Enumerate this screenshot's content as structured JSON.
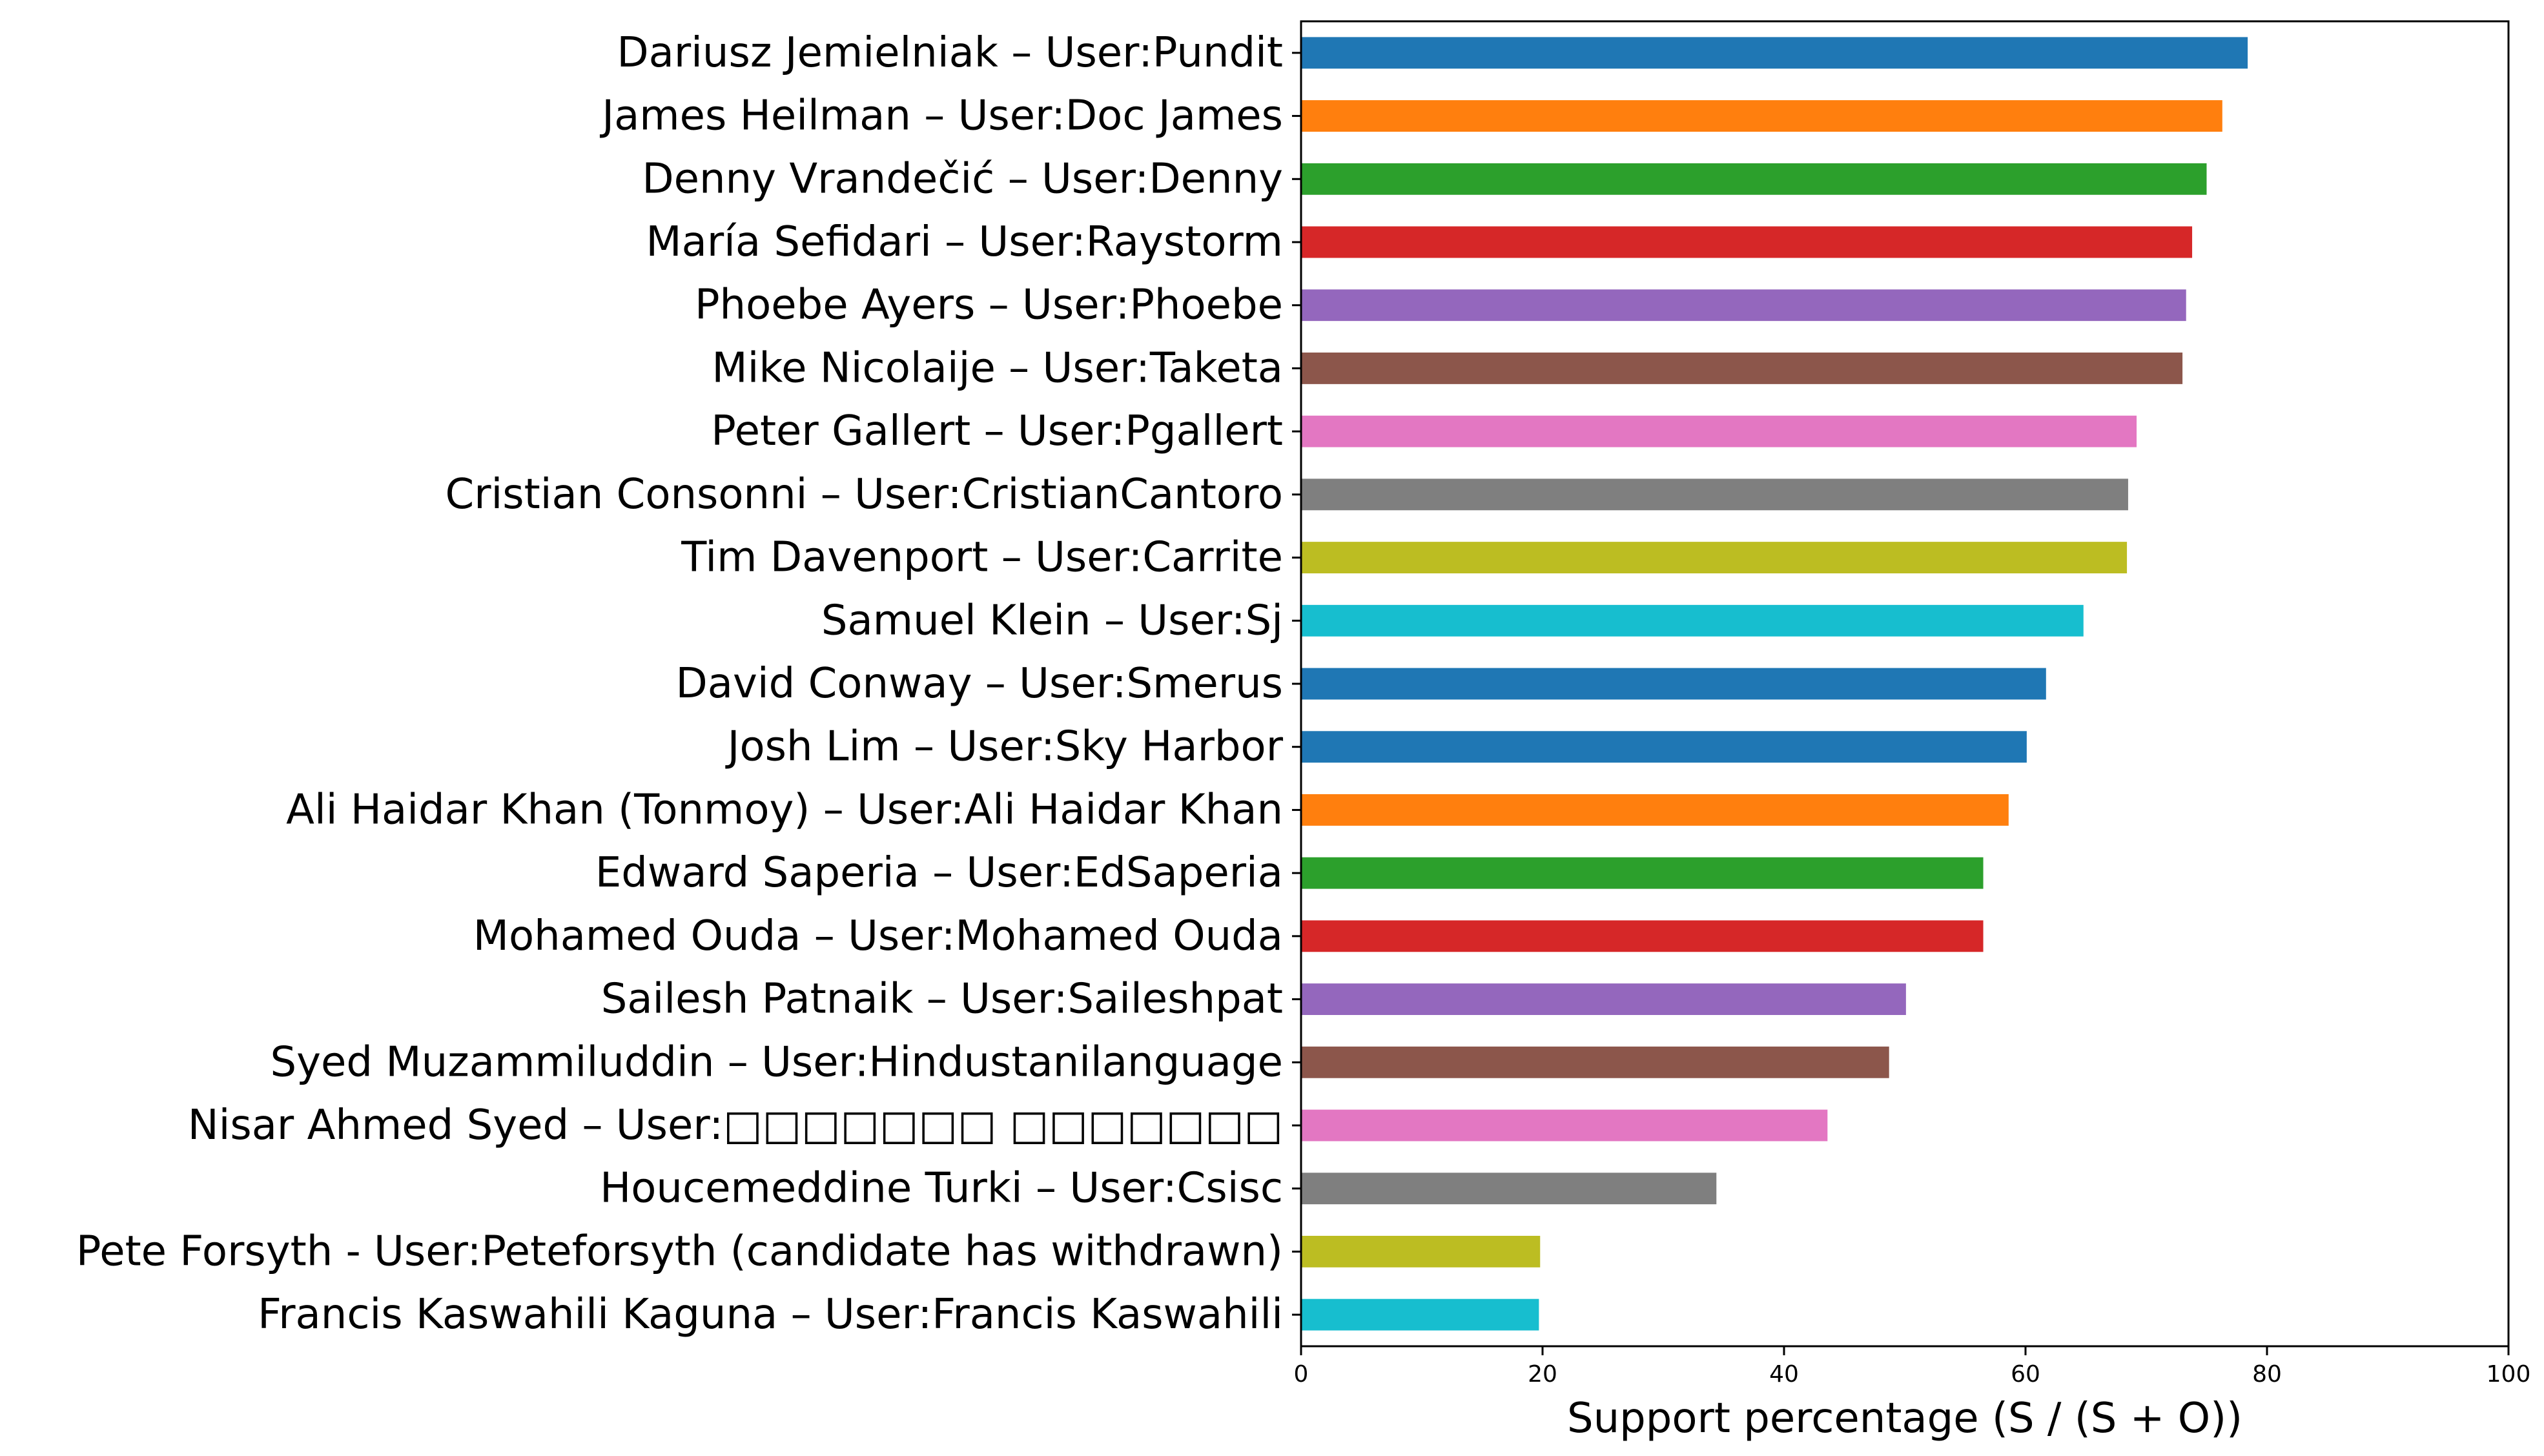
{
  "chart_data": {
    "type": "bar",
    "orientation": "horizontal",
    "title": "",
    "xlabel": "Support percentage (S / (S + O))",
    "ylabel": "",
    "xlim": [
      0,
      100
    ],
    "xticks": [
      0,
      20,
      40,
      60,
      80,
      100
    ],
    "grid": false,
    "legend": "none",
    "categories": [
      "Dariusz Jemielniak – User:Pundit",
      "James Heilman – User:Doc James",
      "Denny Vrandečić – User:Denny",
      "María Sefidari – User:Raystorm",
      "Phoebe Ayers – User:Phoebe",
      "Mike Nicolaije – User:Taketa",
      "Peter Gallert – User:Pgallert",
      "Cristian Consonni – User:CristianCantoro",
      "Tim Davenport – User:Carrite",
      "Samuel Klein – User:Sj",
      "David Conway – User:Smerus",
      "Josh Lim – User:Sky Harbor",
      "Ali Haidar Khan (Tonmoy) – User:Ali Haidar Khan",
      "Edward Saperia – User:EdSaperia",
      "Mohamed Ouda – User:Mohamed Ouda",
      "Sailesh Patnaik – User:Saileshpat",
      "Syed Muzammiluddin – User:Hindustanilanguage",
      "Nisar Ahmed Syed – User:□□□□□□□ □□□□□□□",
      "Houcemeddine Turki – User:Csisc",
      "Pete Forsyth - User:Peteforsyth (candidate has withdrawn)",
      "Francis Kaswahili Kaguna – User:Francis Kaswahili"
    ],
    "values": [
      78.4,
      76.3,
      75.0,
      73.8,
      73.3,
      73.0,
      69.2,
      68.5,
      68.4,
      64.8,
      61.7,
      60.1,
      58.6,
      56.5,
      56.5,
      50.1,
      48.7,
      43.6,
      34.4,
      19.8,
      19.7
    ],
    "colors": [
      "#1f77b4",
      "#ff7f0e",
      "#2ca02c",
      "#d62728",
      "#9467bd",
      "#8c564b",
      "#e377c2",
      "#7f7f7f",
      "#bcbd22",
      "#17becf",
      "#1f77b4",
      "#1f77b4",
      "#ff7f0e",
      "#2ca02c",
      "#d62728",
      "#9467bd",
      "#8c564b",
      "#e377c2",
      "#7f7f7f",
      "#bcbd22",
      "#17becf"
    ]
  }
}
